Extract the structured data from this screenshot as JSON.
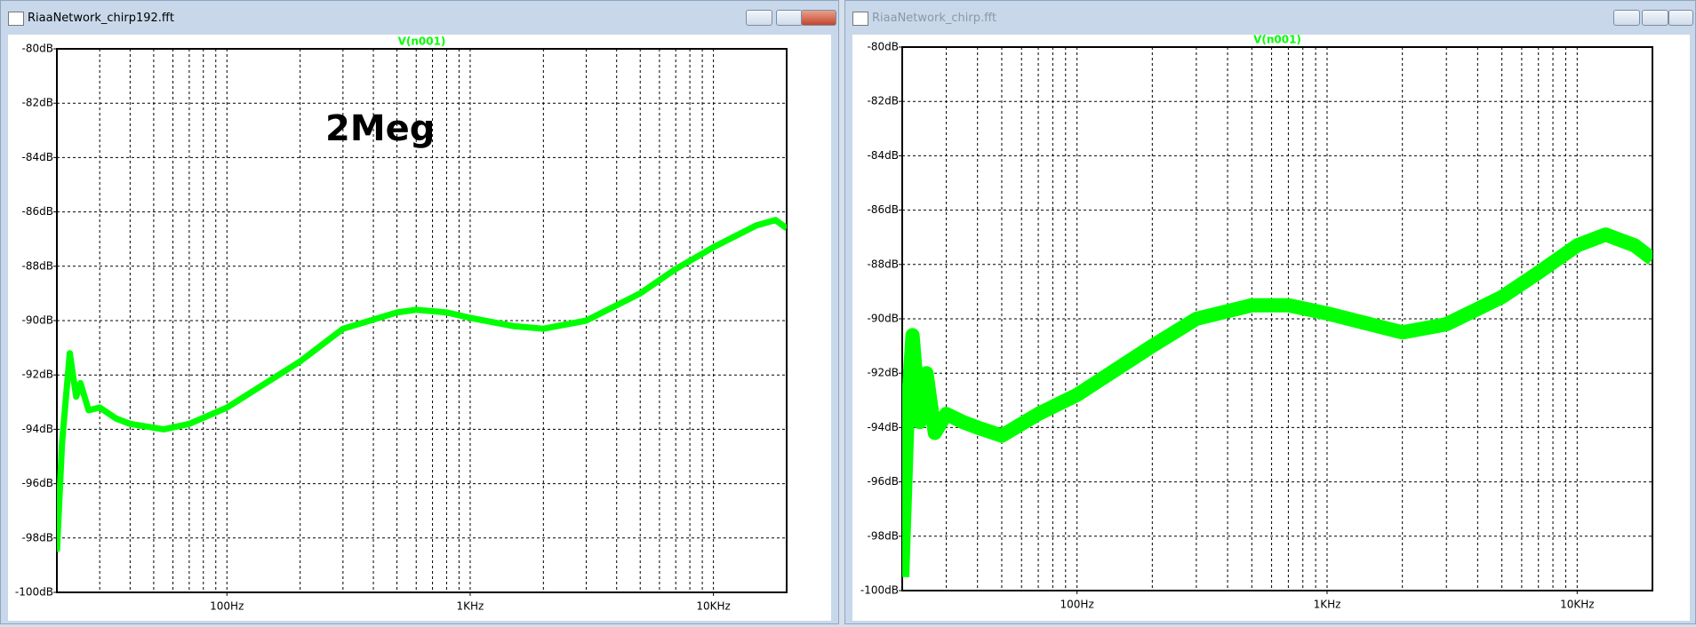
{
  "chart_data": [
    {
      "type": "line",
      "window_title": "RiaaNetwork_chirp192.fft",
      "annotation": "2Meg",
      "active": true,
      "log_x": true,
      "grid": true,
      "x": [
        20,
        21,
        22.6,
        24,
        25,
        27,
        30,
        35,
        40,
        55,
        70,
        100,
        200,
        300,
        500,
        600,
        800,
        1000,
        1500,
        2000,
        3000,
        5000,
        7000,
        10000,
        15000,
        18000,
        20000
      ],
      "series": [
        {
          "name": "V(n001)",
          "color": "#00ff00",
          "values": [
            -98.5,
            -94.5,
            -91.2,
            -92.8,
            -92.3,
            -93.3,
            -93.2,
            -93.6,
            -93.8,
            -94.0,
            -93.8,
            -93.2,
            -91.5,
            -90.3,
            -89.7,
            -89.6,
            -89.7,
            -89.9,
            -90.2,
            -90.3,
            -90.0,
            -89.0,
            -88.1,
            -87.3,
            -86.5,
            -86.3,
            -86.6
          ]
        }
      ],
      "xlim": [
        20,
        20000
      ],
      "xticks": [
        {
          "value": 100,
          "label": "100Hz"
        },
        {
          "value": 1000,
          "label": "1KHz"
        },
        {
          "value": 10000,
          "label": "10KHz"
        }
      ],
      "xminorticks": [
        30,
        40,
        50,
        60,
        70,
        80,
        90,
        200,
        300,
        400,
        500,
        600,
        700,
        800,
        900,
        2000,
        3000,
        4000,
        5000,
        6000,
        7000,
        8000,
        9000
      ],
      "ylim": [
        -100,
        -80
      ],
      "yticks": [
        {
          "value": -80,
          "label": "-80dB"
        },
        {
          "value": -82,
          "label": "-82dB"
        },
        {
          "value": -84,
          "label": "-84dB"
        },
        {
          "value": -86,
          "label": "-86dB"
        },
        {
          "value": -88,
          "label": "-88dB"
        },
        {
          "value": -90,
          "label": "-90dB"
        },
        {
          "value": -92,
          "label": "-92dB"
        },
        {
          "value": -94,
          "label": "-94dB"
        },
        {
          "value": -96,
          "label": "-96dB"
        },
        {
          "value": -98,
          "label": "-98dB"
        },
        {
          "value": -100,
          "label": "-100dB"
        }
      ]
    },
    {
      "type": "line",
      "window_title": "RiaaNetwork_chirp.fft",
      "active": false,
      "log_x": true,
      "grid": true,
      "x": [
        20,
        21,
        22,
        23.5,
        25,
        27,
        30,
        35,
        40,
        50,
        70,
        100,
        200,
        300,
        500,
        700,
        1000,
        2000,
        3000,
        5000,
        7000,
        10000,
        13000,
        17000,
        20000
      ],
      "series": [
        {
          "name": "V(n001)",
          "color": "#00ff00",
          "values": [
            -99.5,
            -93.5,
            -90.6,
            -93.8,
            -92.0,
            -94.2,
            -93.5,
            -93.8,
            -94.0,
            -94.3,
            -93.5,
            -92.8,
            -91.0,
            -90.0,
            -89.5,
            -89.5,
            -89.8,
            -90.5,
            -90.2,
            -89.2,
            -88.3,
            -87.3,
            -86.9,
            -87.3,
            -87.8
          ]
        }
      ],
      "xlim": [
        20,
        20000
      ],
      "xticks": [
        {
          "value": 100,
          "label": "100Hz"
        },
        {
          "value": 1000,
          "label": "1KHz"
        },
        {
          "value": 10000,
          "label": "10KHz"
        }
      ],
      "xminorticks": [
        30,
        40,
        50,
        60,
        70,
        80,
        90,
        200,
        300,
        400,
        500,
        600,
        700,
        800,
        900,
        2000,
        3000,
        4000,
        5000,
        6000,
        7000,
        8000,
        9000
      ],
      "ylim": [
        -100,
        -80
      ],
      "yticks": [
        {
          "value": -80,
          "label": "-80dB"
        },
        {
          "value": -82,
          "label": "-82dB"
        },
        {
          "value": -84,
          "label": "-84dB"
        },
        {
          "value": -86,
          "label": "-86dB"
        },
        {
          "value": -88,
          "label": "-88dB"
        },
        {
          "value": -90,
          "label": "-90dB"
        },
        {
          "value": -92,
          "label": "-92dB"
        },
        {
          "value": -94,
          "label": "-94dB"
        },
        {
          "value": -96,
          "label": "-96dB"
        },
        {
          "value": -98,
          "label": "-98dB"
        },
        {
          "value": -100,
          "label": "-100dB"
        }
      ]
    }
  ]
}
